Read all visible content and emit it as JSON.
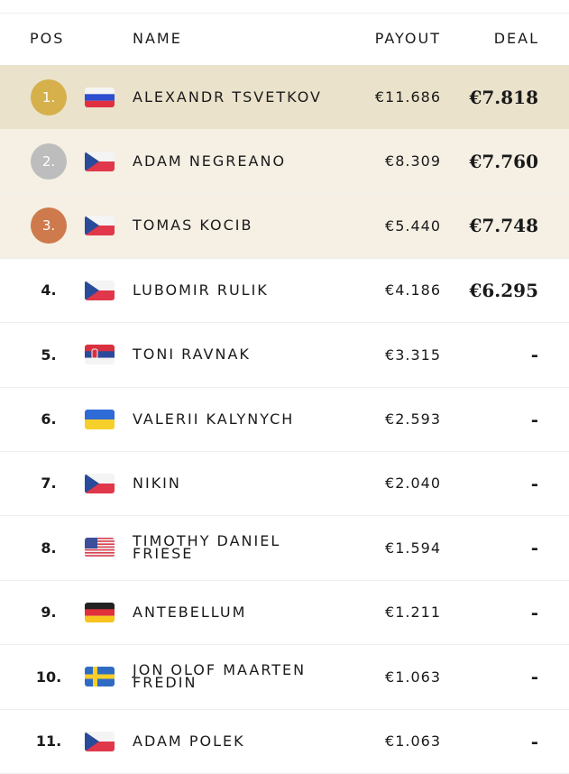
{
  "header": {
    "pos": "POS",
    "name": "NAME",
    "payout": "PAYOUT",
    "deal": "DEAL"
  },
  "table": {
    "rows": [
      [
        "1.",
        "ALEXANDR TSVETKOV",
        "€11.686",
        "€7.818"
      ],
      [
        "2.",
        "ADAM NEGREANO",
        "€8.309",
        "€7.760"
      ],
      [
        "3.",
        "TOMAS KOCIB",
        "€5.440",
        "€7.748"
      ],
      [
        "4.",
        "LUBOMIR RULIK",
        "€4.186",
        "€6.295"
      ],
      [
        "5.",
        "TONI RAVNAK",
        "€3.315",
        "-"
      ],
      [
        "6.",
        "VALERII KALYNYCH",
        "€2.593",
        "-"
      ],
      [
        "7.",
        "NIKIN",
        "€2.040",
        "-"
      ],
      [
        "8.",
        "TIMOTHY DANIEL FRIESE",
        "€1.594",
        "-"
      ],
      [
        "9.",
        "ANTEBELLUM",
        "€1.211",
        "-"
      ],
      [
        "10.",
        "JON OLOF MAARTEN FREDIN",
        "€1.063",
        "-"
      ],
      [
        "11.",
        "ADAM POLEK",
        "€1.063",
        "-"
      ]
    ]
  }
}
